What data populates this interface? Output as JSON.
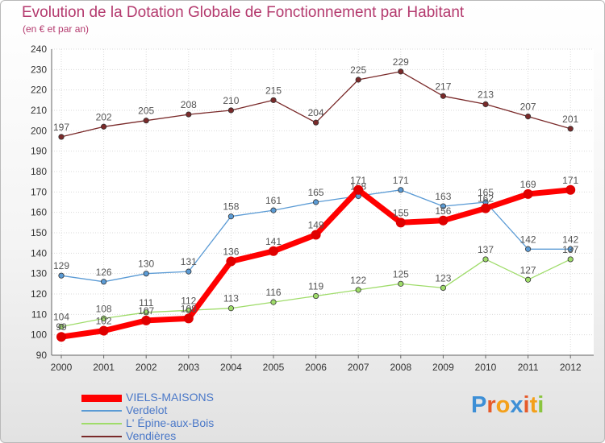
{
  "chart_data": {
    "type": "line",
    "title": "Evolution de la Dotation Globale de Fonctionnement par Habitant",
    "subtitle": "(en € et par an)",
    "x": [
      "2000",
      "2001",
      "2002",
      "2003",
      "2004",
      "2005",
      "2006",
      "2007",
      "2008",
      "2009",
      "2010",
      "2011",
      "2012"
    ],
    "ylim": [
      90,
      240
    ],
    "yticks": [
      90,
      100,
      110,
      120,
      130,
      140,
      150,
      160,
      170,
      180,
      190,
      200,
      210,
      220,
      230,
      240
    ],
    "grid": true,
    "legend_position": "bottom-left",
    "series": [
      {
        "name": "Vendières",
        "color": "#7a2a2a",
        "values": [
          197,
          202,
          205,
          208,
          210,
          215,
          204,
          225,
          229,
          217,
          213,
          207,
          201
        ]
      },
      {
        "name": "Verdelot",
        "color": "#5b9bd5",
        "values": [
          129,
          126,
          130,
          131,
          158,
          161,
          165,
          168,
          171,
          163,
          165,
          142,
          142
        ]
      },
      {
        "name": "L' Épine-aux-Bois",
        "color": "#9fdc6a",
        "values": [
          104,
          108,
          111,
          112,
          113,
          116,
          119,
          122,
          125,
          123,
          137,
          127,
          137
        ]
      },
      {
        "name": "VIELS-MAISONS",
        "color": "#ff0000",
        "values": [
          99,
          102,
          107,
          108,
          136,
          141,
          149,
          171,
          155,
          156,
          162,
          169,
          171
        ]
      }
    ]
  },
  "legend": [
    {
      "label": "VIELS-MAISONS",
      "color": "#ff0000",
      "text_color": "#4a78c8"
    },
    {
      "label": "Verdelot",
      "color": "#5b9bd5",
      "text_color": "#4a78c8"
    },
    {
      "label": "L' Épine-aux-Bois",
      "color": "#9fdc6a",
      "text_color": "#4a78c8"
    },
    {
      "label": "Vendières",
      "color": "#7a2a2a",
      "text_color": "#4a78c8"
    }
  ],
  "logo": {
    "text": "Proxiti",
    "colors": [
      "#3d8fd6",
      "#e65a2a",
      "#f4a01a",
      "#3d8fd6",
      "#e65a2a",
      "#f4a01a",
      "#8ac53f"
    ]
  }
}
